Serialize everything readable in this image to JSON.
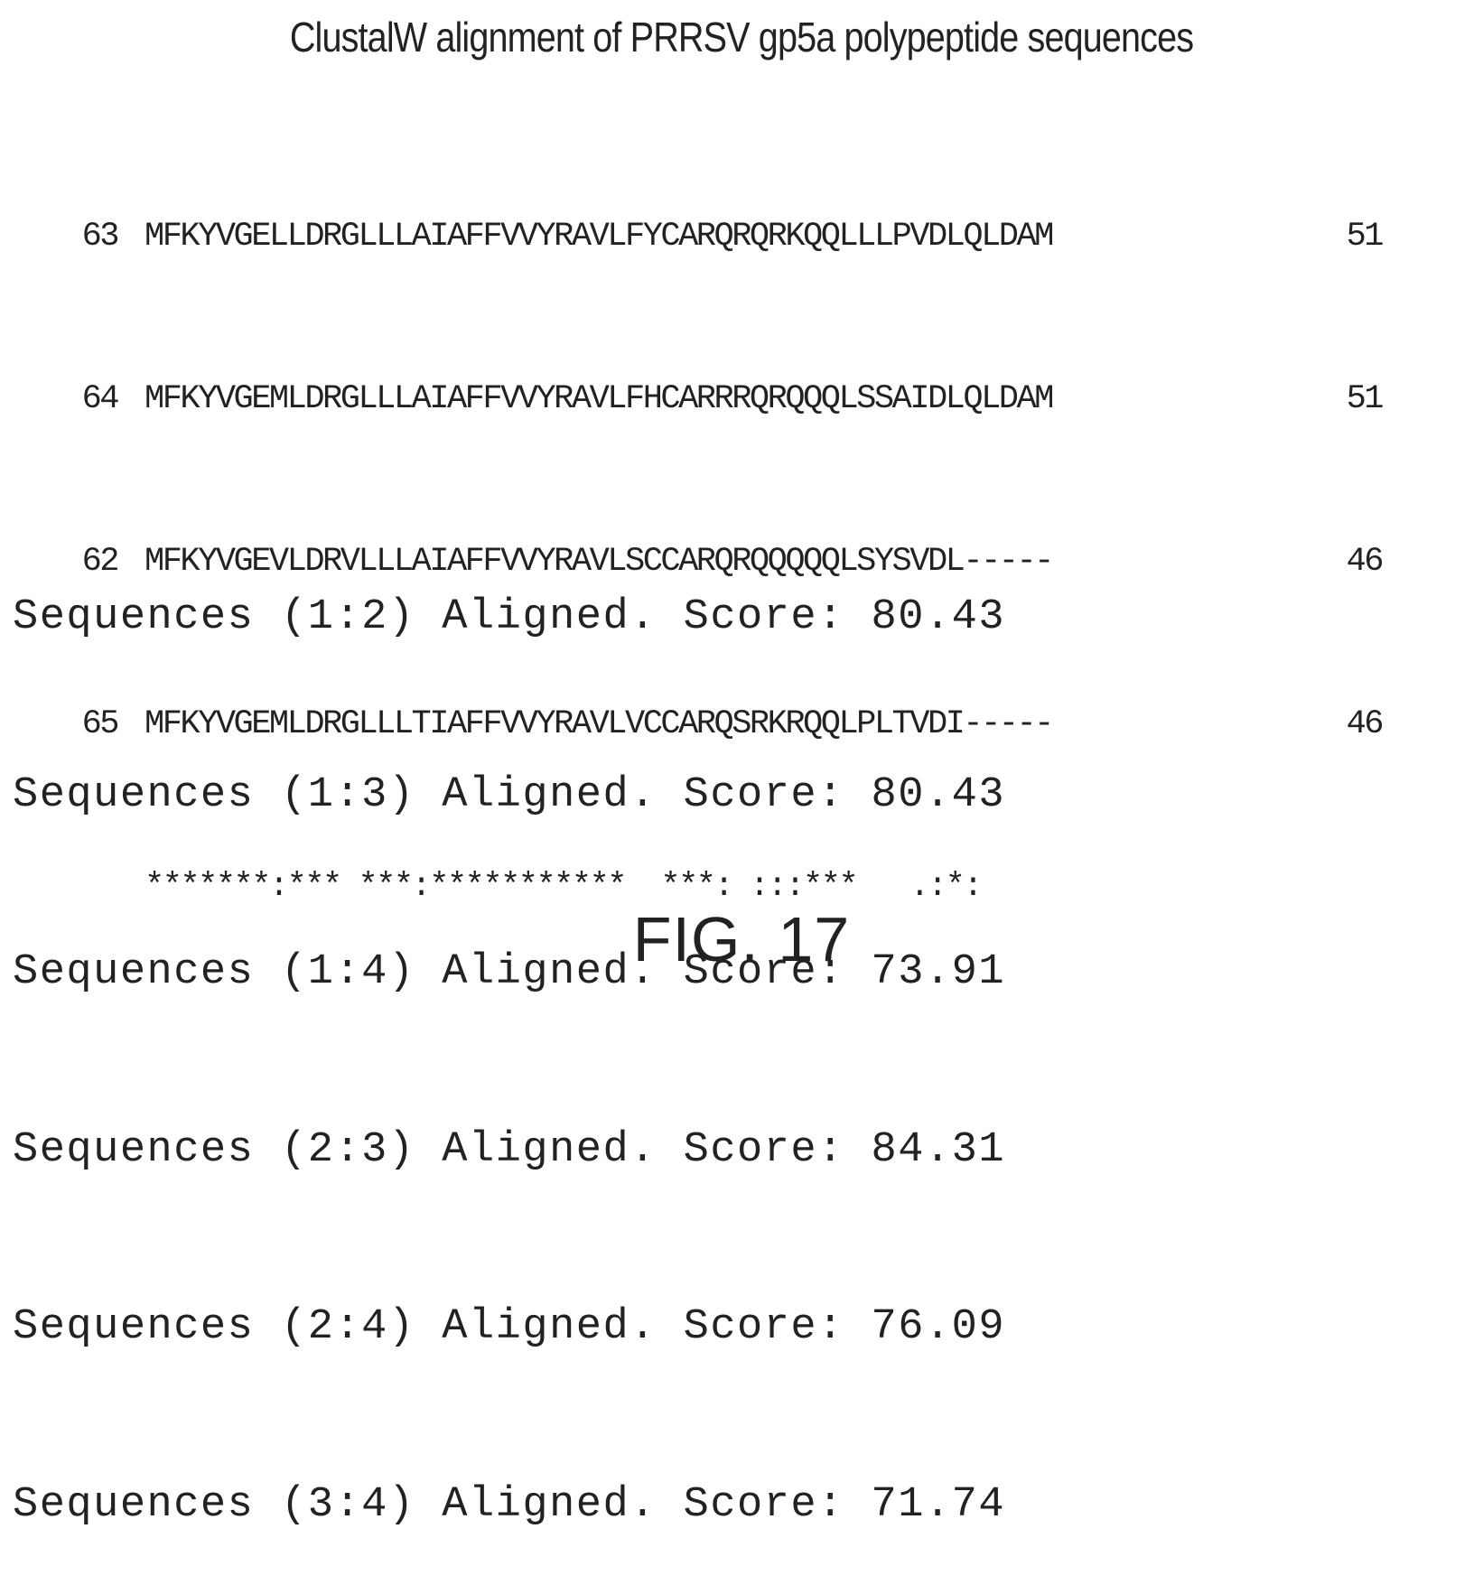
{
  "title": "ClustalW alignment of PRRSV gp5a polypeptide sequences",
  "alignment": {
    "rows": [
      {
        "id": "63",
        "sequence": "MFKYVGELLDRGLLLAIAFFVVYRAVLFYCARQRQRKQQLLLPVDLQLDAM",
        "end": "51"
      },
      {
        "id": "64",
        "sequence": "MFKYVGEMLDRGLLLAIAFFVVYRAVLFHCARRRQRQQQLSSAIDLQLDAM",
        "end": "51"
      },
      {
        "id": "62",
        "sequence": "MFKYVGEVLDRVLLLAIAFFVVYRAVLSCCARQRQQQQQLSYSVDL-----",
        "end": "46"
      },
      {
        "id": "65",
        "sequence": "MFKYVGEMLDRGLLLTIAFFVVYRAVLVCCARQSRKRQQLPLTVDI-----",
        "end": "46"
      }
    ],
    "consensus": "*******:*** ***:***********  ***: :::***   .:*:"
  },
  "scores": [
    "Sequences (1:2) Aligned. Score: 80.43",
    "Sequences (1:3) Aligned. Score: 80.43",
    "Sequences (1:4) Aligned. Score: 73.91",
    "Sequences (2:3) Aligned. Score: 84.31",
    "Sequences (2:4) Aligned. Score: 76.09",
    "Sequences (3:4) Aligned. Score: 71.74"
  ],
  "figure_label": "FIG. 17"
}
